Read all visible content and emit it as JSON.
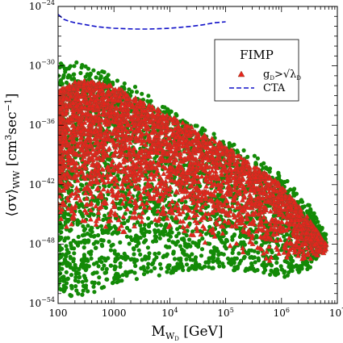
{
  "chart_data": {
    "type": "scatter",
    "x_scale": "log",
    "y_scale": "log",
    "xlim": [
      100,
      10000000
    ],
    "ylim": [
      1e-54,
      1e-24
    ],
    "x_ticks": [
      {
        "value": 100,
        "label": "100"
      },
      {
        "value": 1000,
        "label": "1000"
      },
      {
        "value": 10000,
        "base": "10",
        "exp": "4"
      },
      {
        "value": 100000,
        "base": "10",
        "exp": "5"
      },
      {
        "value": 1000000,
        "base": "10",
        "exp": "6"
      },
      {
        "value": 10000000,
        "base": "10",
        "exp": "7"
      }
    ],
    "y_ticks": [
      {
        "value": 1e-54,
        "base": "10",
        "exp": "−54"
      },
      {
        "value": 1e-48,
        "base": "10",
        "exp": "−48"
      },
      {
        "value": 1e-42,
        "base": "10",
        "exp": "−42"
      },
      {
        "value": 1e-36,
        "base": "10",
        "exp": "−36"
      },
      {
        "value": 1e-30,
        "base": "10",
        "exp": "−30"
      },
      {
        "value": 1e-24,
        "base": "10",
        "exp": "−24"
      }
    ],
    "xlabel": {
      "main": "M",
      "sub": "W",
      "subsub": "D",
      "unit": " [GeV]"
    },
    "ylabel": {
      "main": "⟨σv⟩",
      "sub": "WW",
      "unit": " [cm",
      "sup": "3",
      "mid": "sec",
      "sup2": "−1",
      "close": "]"
    },
    "legend": {
      "title": "FIMP",
      "position": "upper-right",
      "entries": [
        {
          "label_main": "g",
          "label_sub": "D",
          "label_rest": ">√λ",
          "label_sub2": "D",
          "marker": "triangle",
          "color": "#e8231d"
        },
        {
          "label_main": "CTA",
          "marker": "dashed-line",
          "color": "#1010c8"
        }
      ]
    },
    "colors": {
      "green": "#138a07",
      "red": "#e8231d",
      "red_edge": "#8b4a2a",
      "cta": "#1010c8"
    },
    "series": [
      {
        "name": "CTA",
        "kind": "line",
        "x_log10": [
          2.0,
          2.1,
          2.2,
          2.3,
          2.4,
          2.5,
          2.6,
          2.7,
          2.8,
          2.9,
          3.0,
          3.2,
          3.4,
          3.6,
          3.8,
          4.0,
          4.2,
          4.4,
          4.6,
          4.8,
          5.0
        ],
        "y_log10": [
          -24.8,
          -25.3,
          -25.5,
          -25.65,
          -25.75,
          -25.85,
          -25.95,
          -26.05,
          -26.1,
          -26.15,
          -26.2,
          -26.25,
          -26.28,
          -26.28,
          -26.25,
          -26.2,
          -26.1,
          -26.0,
          -25.85,
          -25.65,
          -25.55
        ]
      },
      {
        "name": "scan-all",
        "kind": "scatter",
        "color": "green",
        "upper_log10": [
          [
            2.0,
            -29.8
          ],
          [
            2.3,
            -29.5
          ],
          [
            2.6,
            -30.2
          ],
          [
            3.0,
            -30.8
          ],
          [
            3.5,
            -32.5
          ],
          [
            4.0,
            -34.5
          ],
          [
            4.5,
            -36.0
          ],
          [
            5.0,
            -37.5
          ],
          [
            5.5,
            -39.0
          ],
          [
            6.0,
            -41.0
          ],
          [
            6.5,
            -44.0
          ],
          [
            6.8,
            -47.0
          ]
        ],
        "lower_log10": [
          [
            2.0,
            -52.5
          ],
          [
            2.3,
            -53.5
          ],
          [
            2.6,
            -53.0
          ],
          [
            3.0,
            -52.0
          ],
          [
            3.5,
            -51.5
          ],
          [
            4.0,
            -51.0
          ],
          [
            4.5,
            -50.5
          ],
          [
            5.0,
            -50.5
          ],
          [
            5.5,
            -51.0
          ],
          [
            6.0,
            -51.5
          ],
          [
            6.5,
            -50.5
          ],
          [
            6.8,
            -48.0
          ]
        ]
      },
      {
        "name": "gD>sqrt(lambdaD)",
        "kind": "scatter",
        "color": "red",
        "upper_log10": [
          [
            2.0,
            -32.5
          ],
          [
            2.3,
            -31.5
          ],
          [
            2.6,
            -31.5
          ],
          [
            3.0,
            -32.0
          ],
          [
            3.5,
            -33.5
          ],
          [
            4.0,
            -35.0
          ],
          [
            4.5,
            -36.5
          ],
          [
            5.0,
            -38.0
          ],
          [
            5.5,
            -40.0
          ],
          [
            6.0,
            -42.0
          ],
          [
            6.5,
            -45.5
          ],
          [
            6.8,
            -48.0
          ]
        ],
        "lower_log10": [
          [
            2.0,
            -48.5
          ],
          [
            2.3,
            -50.0
          ],
          [
            2.6,
            -50.0
          ],
          [
            3.0,
            -50.0
          ],
          [
            3.5,
            -49.5
          ],
          [
            4.0,
            -49.5
          ],
          [
            4.5,
            -50.0
          ],
          [
            5.0,
            -50.5
          ],
          [
            5.5,
            -51.0
          ],
          [
            6.0,
            -51.5
          ],
          [
            6.5,
            -50.5
          ],
          [
            6.8,
            -49.0
          ]
        ]
      }
    ]
  }
}
